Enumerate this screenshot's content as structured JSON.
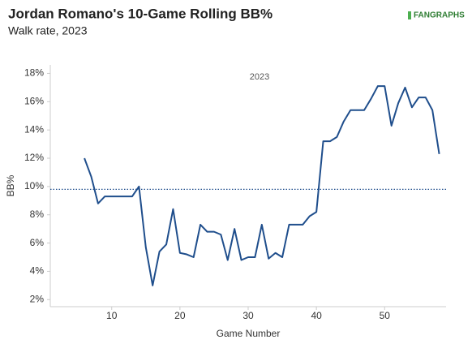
{
  "chart_data": {
    "type": "line",
    "title": "Jordan Romano's 10-Game Rolling BB%",
    "subtitle": "Walk rate, 2023",
    "brand": "FANGRAPHS",
    "annotation": "2023",
    "x_label": "Game Number",
    "y_label": "BB%",
    "x": [
      6,
      7,
      8,
      9,
      10,
      11,
      12,
      13,
      14,
      15,
      16,
      17,
      18,
      19,
      20,
      21,
      22,
      23,
      24,
      25,
      26,
      27,
      28,
      29,
      30,
      31,
      32,
      33,
      34,
      35,
      36,
      37,
      38,
      39,
      40,
      41,
      42,
      43,
      44,
      45,
      46,
      47,
      48,
      49,
      50,
      51,
      52,
      53,
      54,
      55,
      56,
      57,
      58
    ],
    "series": [
      {
        "name": "2023",
        "color": "#1f4e8c",
        "values": [
          12.0,
          10.7,
          8.8,
          9.3,
          9.3,
          9.3,
          9.3,
          9.3,
          10.0,
          5.7,
          3.0,
          5.4,
          5.9,
          8.4,
          5.3,
          5.2,
          5.0,
          7.3,
          6.8,
          6.8,
          6.6,
          4.8,
          7.0,
          4.8,
          5.0,
          5.0,
          7.3,
          4.9,
          5.3,
          5.0,
          7.3,
          7.3,
          7.3,
          7.9,
          8.2,
          13.2,
          13.2,
          13.5,
          14.6,
          15.4,
          15.4,
          15.4,
          16.2,
          17.1,
          17.1,
          14.3,
          15.9,
          17.0,
          15.6,
          16.3,
          16.3,
          15.4,
          12.3
        ]
      }
    ],
    "reference_line": 9.8,
    "xlim": [
      1,
      59
    ],
    "xticks": [
      10,
      20,
      30,
      40,
      50
    ],
    "ylim": [
      1.5,
      18.6
    ],
    "yticks": [
      {
        "value": 2,
        "label": "2%"
      },
      {
        "value": 4,
        "label": "4%"
      },
      {
        "value": 6,
        "label": "6%"
      },
      {
        "value": 8,
        "label": "8%"
      },
      {
        "value": 10,
        "label": "10%"
      },
      {
        "value": 12,
        "label": "12%"
      },
      {
        "value": 14,
        "label": "14%"
      },
      {
        "value": 16,
        "label": "16%"
      },
      {
        "value": 18,
        "label": "18%"
      }
    ]
  }
}
